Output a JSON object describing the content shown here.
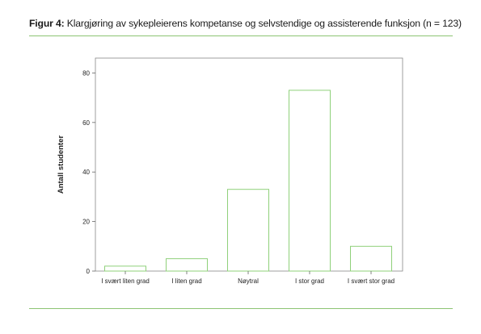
{
  "figure": {
    "label": "Figur 4:",
    "caption": "Klargjøring av sykepleierens kompetanse og selvstendige og assisterende funksjon (n = 123)"
  },
  "colors": {
    "rule": "#8cc473",
    "bar_stroke": "#8fd07a",
    "frame": "#888888"
  },
  "chart_data": {
    "type": "bar",
    "categories": [
      "I svært liten grad",
      "I liten grad",
      "Nøytral",
      "I stor grad",
      "I svært stor grad"
    ],
    "values": [
      2,
      5,
      33,
      73,
      10
    ],
    "ylabel": "Antall studenter",
    "xlabel": "",
    "yticks": [
      0,
      20,
      40,
      60,
      80
    ],
    "ylim": [
      0,
      86
    ],
    "grid": false,
    "legend": "none"
  }
}
